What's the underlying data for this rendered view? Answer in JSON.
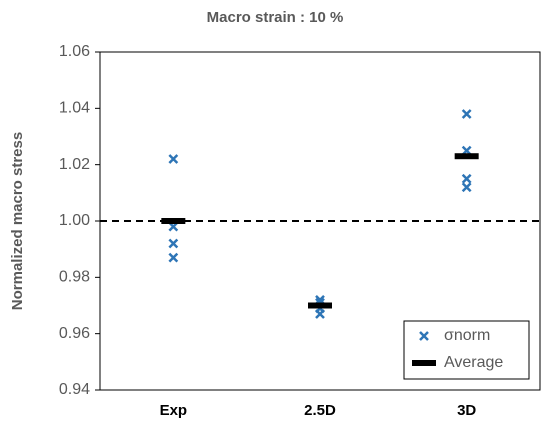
{
  "chart_data": {
    "type": "scatter",
    "title": "Macro strain : 10 %",
    "y_label": "Normalized macro stress",
    "categories": [
      "Exp",
      "2.5D",
      "3D"
    ],
    "series": [
      {
        "name": "σnorm",
        "color": "#2e75b6",
        "marker": "x",
        "x": [
          "Exp",
          "Exp",
          "Exp",
          "Exp",
          "2.5D",
          "2.5D",
          "2.5D",
          "2.5D",
          "3D",
          "3D",
          "3D",
          "3D"
        ],
        "values": [
          1.022,
          0.998,
          0.992,
          0.987,
          0.972,
          0.971,
          0.969,
          0.967,
          1.038,
          1.025,
          1.015,
          1.012
        ]
      },
      {
        "name": "Average",
        "color": "#000000",
        "marker": "dash",
        "x": [
          "Exp",
          "2.5D",
          "3D"
        ],
        "values": [
          1.0,
          0.97,
          1.023
        ]
      }
    ],
    "reference_line": {
      "value": 1,
      "style": "dashed",
      "color": "#000000"
    },
    "ylim": [
      0.94,
      1.06
    ],
    "yticks": [
      0.94,
      0.96,
      0.98,
      {
        "value": 1,
        "label": "1.00"
      },
      1.02,
      1.04,
      1.06
    ],
    "grid": false,
    "legend": "lower right"
  }
}
